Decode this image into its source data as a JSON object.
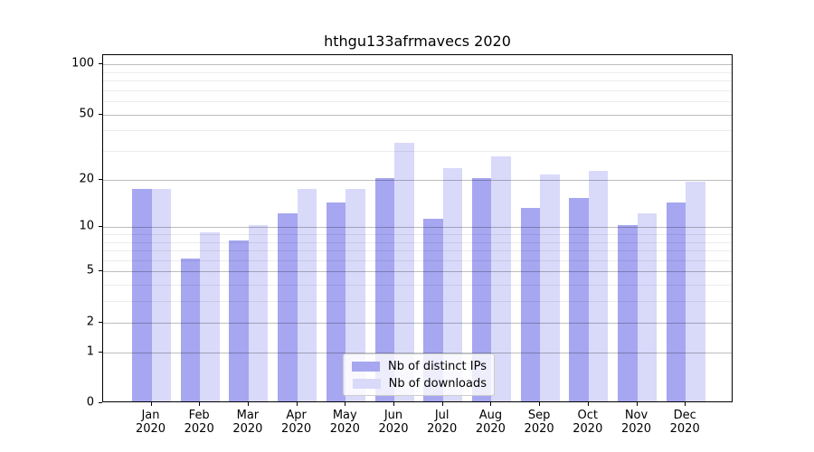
{
  "title": "hthgu133afrmavecs 2020",
  "chart_data": {
    "type": "bar",
    "title": "hthgu133afrmavecs 2020",
    "categories": [
      "Jan",
      "Feb",
      "Mar",
      "Apr",
      "May",
      "Jun",
      "Jul",
      "Aug",
      "Sep",
      "Oct",
      "Nov",
      "Dec"
    ],
    "year_label": "2020",
    "series": [
      {
        "name": "Nb of distinct IPs",
        "color": "#a6a6f1",
        "values": [
          17,
          6,
          8,
          12,
          14,
          20,
          11,
          20,
          13,
          15,
          10,
          14
        ]
      },
      {
        "name": "Nb of downloads",
        "color": "#d9d9fa",
        "values": [
          17,
          9,
          10,
          17,
          17,
          33,
          23,
          27,
          21,
          22,
          12,
          19
        ]
      }
    ],
    "xlabel": "",
    "ylabel": "",
    "yscale": "log10(1+x)",
    "ylim": [
      0,
      113
    ],
    "yticks": [
      0,
      1,
      2,
      5,
      10,
      20,
      50,
      100
    ],
    "minor_gridlines": [
      3,
      4,
      6,
      7,
      8,
      9,
      30,
      40,
      60,
      70,
      80,
      90
    ],
    "grid": true,
    "legend_position": "lower center"
  }
}
